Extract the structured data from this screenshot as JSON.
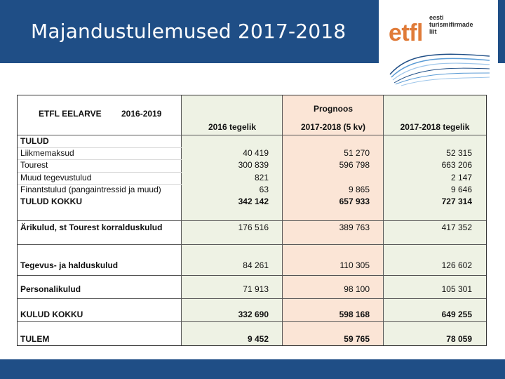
{
  "slide": {
    "title": "Majandustulemused 2017-2018"
  },
  "logo": {
    "mark": "etfl",
    "line1": "eesti",
    "line2": "turismifirmade",
    "line3": "liit"
  },
  "colors": {
    "header": "#1f4e86",
    "logo": "#e07b39",
    "green_col": "#eef2e4",
    "peach_col": "#fbe5d6"
  },
  "table": {
    "title": "ETFL EELARVE",
    "period": "2016-2019",
    "group_header": "Prognoos",
    "columns": [
      "2016 tegelik",
      "2017-2018 (5 kv)",
      "2017-2018 tegelik"
    ],
    "rows": {
      "tulud": {
        "label": "TULUD"
      },
      "liikmemaksud": {
        "label": "Liikmemaksud",
        "v1": "40 419",
        "v2": "51 270",
        "v3": "52 315"
      },
      "tourest": {
        "label": "Tourest",
        "v1": "300 839",
        "v2": "596 798",
        "v3": "663 206"
      },
      "muud": {
        "label": "Muud tegevustulud",
        "v1": "821",
        "v2": "",
        "v3": "2 147"
      },
      "finants": {
        "label": "Finantstulud (pangaintressid ja muud)",
        "v1": "63",
        "v2": "9 865",
        "v3": "9 646"
      },
      "tulud_kokku": {
        "label": "TULUD KOKKU",
        "v1": "342 142",
        "v2": "657 933",
        "v3": "727 314"
      },
      "arikulud": {
        "label": "Ärikulud, st Tourest korralduskulud",
        "v1": "176 516",
        "v2": "389 763",
        "v3": "417 352"
      },
      "tegevus": {
        "label": "Tegevus- ja halduskulud",
        "v1": "84 261",
        "v2": "110 305",
        "v3": "126 602"
      },
      "personal": {
        "label": "Personalikulud",
        "v1": "71 913",
        "v2": "98 100",
        "v3": "105 301"
      },
      "kulud_kokku": {
        "label": "KULUD KOKKU",
        "v1": "332 690",
        "v2": "598 168",
        "v3": "649 255"
      },
      "tulem": {
        "label": "TULEM",
        "v1": "9 452",
        "v2": "59 765",
        "v3": "78 059"
      }
    }
  }
}
